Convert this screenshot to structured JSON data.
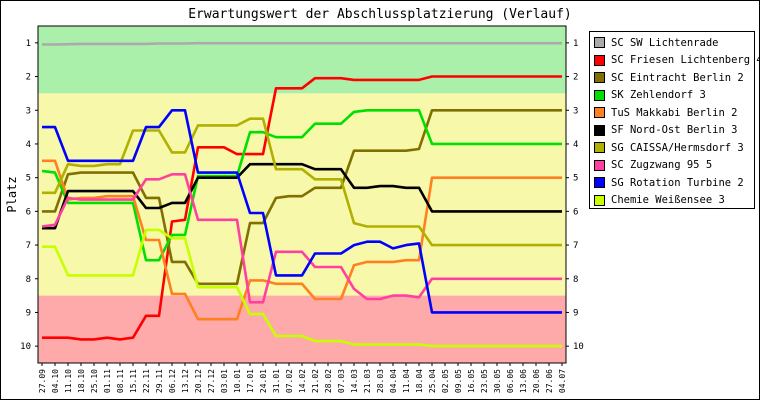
{
  "chart_data": {
    "type": "line",
    "title": "Erwartungswert der Abschlussplatzierung (Verlauf)",
    "ylabel": "Platz",
    "xlabel": "",
    "ylim": [
      0.5,
      10.5
    ],
    "y_ticks": [
      1,
      2,
      3,
      4,
      5,
      6,
      7,
      8,
      9,
      10
    ],
    "y_inverted": true,
    "grid": false,
    "legend_position": "right",
    "x": [
      "27.09",
      "04.10",
      "11.10",
      "18.10",
      "25.10",
      "01.11",
      "08.11",
      "15.11",
      "22.11",
      "29.11",
      "06.12",
      "13.12",
      "20.12",
      "27.12",
      "03.01",
      "10.01",
      "17.01",
      "24.01",
      "31.01",
      "07.02",
      "14.02",
      "21.02",
      "28.02",
      "07.03",
      "14.03",
      "21.03",
      "28.03",
      "04.04",
      "11.04",
      "18.04",
      "25.04",
      "02.05",
      "09.05",
      "16.05",
      "23.05",
      "30.05",
      "06.06",
      "13.06",
      "20.06",
      "27.06",
      "04.07"
    ],
    "bands": [
      {
        "from": 0.5,
        "to": 2.5,
        "color": "#aaf0aa"
      },
      {
        "from": 2.5,
        "to": 8.5,
        "color": "#f8f8aa"
      },
      {
        "from": 8.5,
        "to": 10.5,
        "color": "#ffaaaa"
      }
    ],
    "series": [
      {
        "name": "SC SW Lichtenrade",
        "color": "#aaaaaa",
        "values": [
          1.05,
          1.05,
          1.04,
          1.03,
          1.03,
          1.03,
          1.03,
          1.03,
          1.03,
          1.02,
          1.02,
          1.02,
          1.01,
          1.01,
          1.01,
          1.01,
          1.01,
          1.01,
          1.01,
          1.01,
          1.01,
          1.01,
          1.01,
          1.01,
          1.01,
          1.01,
          1.01,
          1.01,
          1.01,
          1.01,
          1.01,
          1.01,
          1.01,
          1.01,
          1.01,
          1.01,
          1.01,
          1.01,
          1.01,
          1.01,
          1.01
        ]
      },
      {
        "name": "SC Friesen Lichtenberg 4",
        "color": "#ff0000",
        "values": [
          9.75,
          9.75,
          9.75,
          9.8,
          9.8,
          9.75,
          9.8,
          9.75,
          9.1,
          9.1,
          6.3,
          6.25,
          4.1,
          4.1,
          4.1,
          4.3,
          4.3,
          4.3,
          2.35,
          2.35,
          2.35,
          2.05,
          2.05,
          2.05,
          2.1,
          2.1,
          2.1,
          2.1,
          2.1,
          2.1,
          2.0,
          2.0,
          2.0,
          2.0,
          2.0,
          2.0,
          2.0,
          2.0,
          2.0,
          2.0,
          2.0
        ]
      },
      {
        "name": "SC Eintracht Berlin 2",
        "color": "#807000",
        "values": [
          6.0,
          6.0,
          4.9,
          4.85,
          4.85,
          4.85,
          4.85,
          4.85,
          5.6,
          5.6,
          7.5,
          7.5,
          8.15,
          8.15,
          8.15,
          8.15,
          6.35,
          6.35,
          5.6,
          5.55,
          5.55,
          5.3,
          5.3,
          5.3,
          4.2,
          4.2,
          4.2,
          4.2,
          4.2,
          4.15,
          3.0,
          3.0,
          3.0,
          3.0,
          3.0,
          3.0,
          3.0,
          3.0,
          3.0,
          3.0,
          3.0
        ]
      },
      {
        "name": "SK Zehlendorf 3",
        "color": "#00e000",
        "values": [
          4.8,
          4.85,
          5.75,
          5.75,
          5.75,
          5.75,
          5.75,
          5.75,
          7.45,
          7.45,
          6.7,
          6.7,
          4.95,
          4.95,
          4.95,
          4.95,
          3.65,
          3.65,
          3.8,
          3.8,
          3.8,
          3.4,
          3.4,
          3.4,
          3.05,
          3.0,
          3.0,
          3.0,
          3.0,
          3.0,
          4.0,
          4.0,
          4.0,
          4.0,
          4.0,
          4.0,
          4.0,
          4.0,
          4.0,
          4.0,
          4.0
        ]
      },
      {
        "name": "TuS Makkabi Berlin 2",
        "color": "#ff8020",
        "values": [
          4.5,
          4.5,
          5.65,
          5.6,
          5.6,
          5.55,
          5.55,
          5.55,
          6.85,
          6.85,
          8.45,
          8.45,
          9.2,
          9.2,
          9.2,
          9.2,
          8.05,
          8.05,
          8.15,
          8.15,
          8.15,
          8.6,
          8.6,
          8.6,
          7.6,
          7.5,
          7.5,
          7.5,
          7.45,
          7.45,
          5.0,
          5.0,
          5.0,
          5.0,
          5.0,
          5.0,
          5.0,
          5.0,
          5.0,
          5.0,
          5.0
        ]
      },
      {
        "name": "SF Nord-Ost Berlin 3",
        "color": "#000000",
        "values": [
          6.5,
          6.5,
          5.4,
          5.4,
          5.4,
          5.4,
          5.4,
          5.4,
          5.9,
          5.9,
          5.75,
          5.75,
          5.0,
          5.0,
          5.0,
          5.0,
          4.6,
          4.6,
          4.6,
          4.6,
          4.6,
          4.75,
          4.75,
          4.75,
          5.3,
          5.3,
          5.25,
          5.25,
          5.3,
          5.3,
          6.0,
          6.0,
          6.0,
          6.0,
          6.0,
          6.0,
          6.0,
          6.0,
          6.0,
          6.0,
          6.0
        ]
      },
      {
        "name": "SG CAISSA/Hermsdorf 3",
        "color": "#b0b000",
        "values": [
          5.45,
          5.45,
          4.6,
          4.65,
          4.65,
          4.6,
          4.6,
          3.6,
          3.6,
          3.6,
          4.25,
          4.25,
          3.45,
          3.45,
          3.45,
          3.45,
          3.25,
          3.25,
          4.75,
          4.75,
          4.75,
          5.05,
          5.05,
          5.05,
          6.35,
          6.45,
          6.45,
          6.45,
          6.45,
          6.45,
          7.0,
          7.0,
          7.0,
          7.0,
          7.0,
          7.0,
          7.0,
          7.0,
          7.0,
          7.0,
          7.0
        ]
      },
      {
        "name": "SC Zugzwang 95 5",
        "color": "#ff40a0",
        "values": [
          6.45,
          6.4,
          5.6,
          5.65,
          5.65,
          5.65,
          5.65,
          5.65,
          5.05,
          5.05,
          4.9,
          4.9,
          6.25,
          6.25,
          6.25,
          6.25,
          8.7,
          8.7,
          7.2,
          7.2,
          7.2,
          7.65,
          7.65,
          7.65,
          8.3,
          8.6,
          8.6,
          8.5,
          8.5,
          8.55,
          8.0,
          8.0,
          8.0,
          8.0,
          8.0,
          8.0,
          8.0,
          8.0,
          8.0,
          8.0,
          8.0
        ]
      },
      {
        "name": "SG Rotation Turbine 2",
        "color": "#0000ff",
        "values": [
          3.5,
          3.5,
          4.5,
          4.5,
          4.5,
          4.5,
          4.5,
          4.5,
          3.5,
          3.5,
          3.0,
          3.0,
          4.85,
          4.85,
          4.85,
          4.85,
          6.05,
          6.05,
          7.9,
          7.9,
          7.9,
          7.25,
          7.25,
          7.25,
          7.0,
          6.9,
          6.9,
          7.1,
          7.0,
          6.95,
          9.0,
          9.0,
          9.0,
          9.0,
          9.0,
          9.0,
          9.0,
          9.0,
          9.0,
          9.0,
          9.0
        ]
      },
      {
        "name": "Chemie Weißensee 3",
        "color": "#c8ff00",
        "values": [
          7.05,
          7.05,
          7.9,
          7.9,
          7.9,
          7.9,
          7.9,
          7.9,
          6.55,
          6.55,
          6.8,
          6.8,
          8.25,
          8.25,
          8.25,
          8.25,
          9.05,
          9.05,
          9.7,
          9.7,
          9.7,
          9.85,
          9.85,
          9.85,
          9.95,
          9.95,
          9.95,
          9.95,
          9.95,
          9.95,
          10.0,
          10.0,
          10.0,
          10.0,
          10.0,
          10.0,
          10.0,
          10.0,
          10.0,
          10.0,
          10.0
        ]
      }
    ]
  }
}
